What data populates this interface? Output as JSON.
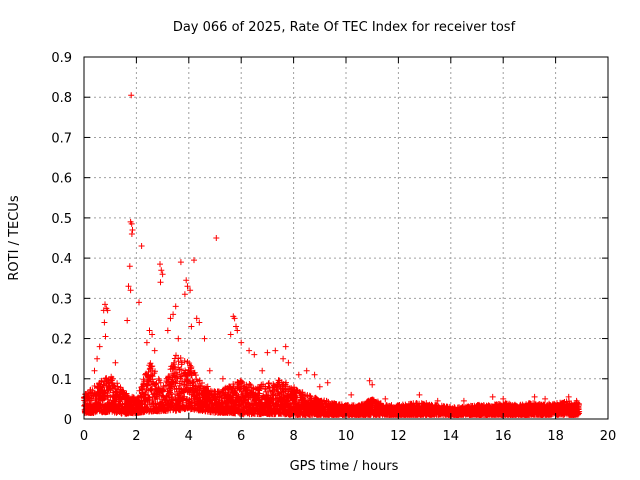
{
  "chart_data": {
    "type": "scatter",
    "title": "Day 066 of 2025, Rate Of TEC Index for receiver tosf",
    "xlabel": "GPS time / hours",
    "ylabel": "ROTI / TECUs",
    "xlim": [
      0,
      20
    ],
    "ylim": [
      0,
      0.9
    ],
    "xticks": [
      "0",
      "2",
      "4",
      "6",
      "8",
      "10",
      "12",
      "14",
      "16",
      "18",
      "20"
    ],
    "yticks": [
      "0",
      "0.1",
      "0.2",
      "0.3",
      "0.4",
      "0.5",
      "0.6",
      "0.7",
      "0.8",
      "0.9"
    ],
    "grid": true,
    "marker": "+",
    "color": "#ff0000",
    "series": [
      {
        "name": "ROTI",
        "outliers": [
          [
            1.8,
            0.805
          ],
          [
            1.78,
            0.49
          ],
          [
            1.82,
            0.485
          ],
          [
            1.85,
            0.47
          ],
          [
            1.83,
            0.46
          ],
          [
            2.2,
            0.43
          ],
          [
            5.05,
            0.45
          ],
          [
            1.75,
            0.38
          ],
          [
            1.7,
            0.33
          ],
          [
            1.78,
            0.32
          ],
          [
            2.9,
            0.385
          ],
          [
            2.95,
            0.37
          ],
          [
            3.0,
            0.36
          ],
          [
            2.92,
            0.34
          ],
          [
            3.7,
            0.39
          ],
          [
            4.2,
            0.395
          ],
          [
            3.9,
            0.345
          ],
          [
            3.95,
            0.33
          ],
          [
            4.05,
            0.32
          ],
          [
            3.85,
            0.31
          ],
          [
            2.1,
            0.29
          ],
          [
            0.8,
            0.285
          ],
          [
            0.85,
            0.275
          ],
          [
            0.75,
            0.27
          ],
          [
            0.9,
            0.27
          ],
          [
            1.65,
            0.245
          ],
          [
            0.78,
            0.24
          ],
          [
            0.6,
            0.18
          ],
          [
            0.82,
            0.205
          ],
          [
            2.5,
            0.22
          ],
          [
            2.6,
            0.21
          ],
          [
            3.4,
            0.26
          ],
          [
            3.5,
            0.28
          ],
          [
            3.3,
            0.25
          ],
          [
            4.3,
            0.25
          ],
          [
            4.4,
            0.24
          ],
          [
            5.7,
            0.255
          ],
          [
            5.75,
            0.25
          ],
          [
            5.8,
            0.23
          ],
          [
            5.85,
            0.22
          ],
          [
            5.6,
            0.21
          ],
          [
            6.0,
            0.19
          ],
          [
            6.3,
            0.17
          ],
          [
            6.5,
            0.16
          ],
          [
            7.0,
            0.165
          ],
          [
            7.3,
            0.17
          ],
          [
            7.7,
            0.18
          ],
          [
            7.6,
            0.15
          ],
          [
            8.5,
            0.12
          ],
          [
            8.8,
            0.11
          ],
          [
            9.3,
            0.09
          ],
          [
            10.9,
            0.095
          ],
          [
            11.0,
            0.085
          ],
          [
            12.8,
            0.06
          ],
          [
            15.6,
            0.055
          ],
          [
            17.2,
            0.055
          ],
          [
            18.5,
            0.055
          ],
          [
            0.5,
            0.15
          ],
          [
            0.4,
            0.12
          ],
          [
            1.2,
            0.14
          ],
          [
            2.4,
            0.19
          ],
          [
            2.7,
            0.17
          ],
          [
            3.2,
            0.22
          ],
          [
            3.6,
            0.2
          ],
          [
            4.1,
            0.23
          ],
          [
            4.6,
            0.2
          ],
          [
            4.8,
            0.12
          ],
          [
            5.3,
            0.1
          ],
          [
            6.8,
            0.12
          ],
          [
            7.8,
            0.14
          ],
          [
            8.2,
            0.11
          ],
          [
            9.0,
            0.08
          ],
          [
            10.2,
            0.06
          ],
          [
            11.5,
            0.05
          ],
          [
            13.5,
            0.045
          ],
          [
            14.5,
            0.045
          ],
          [
            16.0,
            0.05
          ],
          [
            17.6,
            0.05
          ],
          [
            18.8,
            0.045
          ]
        ],
        "envelope": {
          "hours": [
            0.0,
            0.5,
            1.0,
            1.5,
            2.0,
            2.5,
            3.0,
            3.5,
            4.0,
            4.5,
            5.0,
            5.5,
            6.0,
            6.5,
            7.0,
            7.5,
            8.0,
            8.5,
            9.0,
            9.5,
            10.0,
            10.5,
            11.0,
            11.5,
            12.0,
            12.5,
            13.0,
            13.5,
            14.0,
            14.5,
            15.0,
            15.5,
            16.0,
            16.5,
            17.0,
            17.5,
            18.0,
            18.5,
            18.9
          ],
          "low": [
            0.015,
            0.015,
            0.018,
            0.012,
            0.015,
            0.018,
            0.02,
            0.02,
            0.025,
            0.02,
            0.015,
            0.015,
            0.012,
            0.012,
            0.012,
            0.012,
            0.01,
            0.01,
            0.01,
            0.01,
            0.01,
            0.01,
            0.01,
            0.01,
            0.01,
            0.01,
            0.01,
            0.01,
            0.01,
            0.01,
            0.01,
            0.01,
            0.01,
            0.01,
            0.01,
            0.01,
            0.01,
            0.01,
            0.01
          ],
          "high": [
            0.06,
            0.09,
            0.11,
            0.07,
            0.05,
            0.15,
            0.08,
            0.16,
            0.14,
            0.09,
            0.07,
            0.08,
            0.1,
            0.08,
            0.09,
            0.1,
            0.08,
            0.06,
            0.05,
            0.04,
            0.035,
            0.035,
            0.05,
            0.035,
            0.035,
            0.04,
            0.04,
            0.035,
            0.03,
            0.03,
            0.035,
            0.035,
            0.04,
            0.035,
            0.04,
            0.04,
            0.04,
            0.045,
            0.04
          ]
        }
      }
    ]
  }
}
